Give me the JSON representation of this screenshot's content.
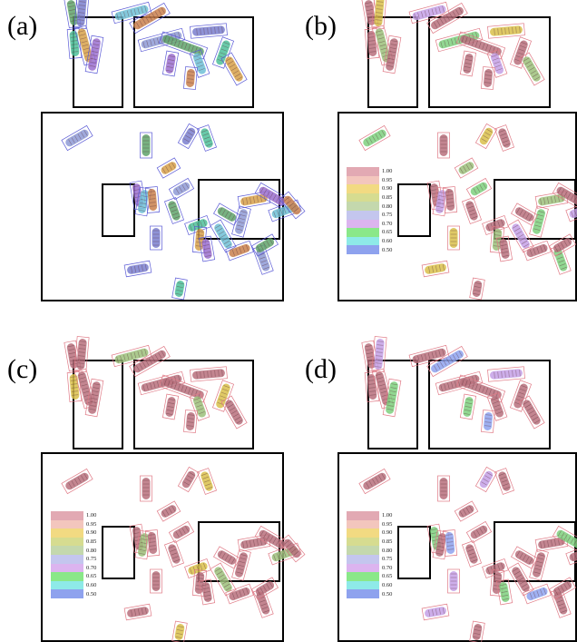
{
  "panels": [
    {
      "id": "a",
      "label": "(a)",
      "has_legend": false
    },
    {
      "id": "b",
      "label": "(b)",
      "has_legend": true
    },
    {
      "id": "c",
      "label": "(c)",
      "has_legend": true
    },
    {
      "id": "d",
      "label": "(d)",
      "has_legend": true
    }
  ],
  "legend": {
    "entries": [
      {
        "value": "1.00",
        "color": "#e2a9b3"
      },
      {
        "value": "0.95",
        "color": "#f3c6bd"
      },
      {
        "value": "0.90",
        "color": "#f2da82"
      },
      {
        "value": "0.85",
        "color": "#d6dc90"
      },
      {
        "value": "0.80",
        "color": "#c4d8ad"
      },
      {
        "value": "0.75",
        "color": "#c4c6ee"
      },
      {
        "value": "0.70",
        "color": "#dcb4ef"
      },
      {
        "value": "0.65",
        "color": "#8ae889"
      },
      {
        "value": "0.60",
        "color": "#8eeae8"
      },
      {
        "value": "0.50",
        "color": "#8ea2ee"
      }
    ]
  },
  "colors": {
    "chromosome_default": "#b8707c",
    "box_pink": "#e07a86",
    "box_blue": "#5b5bd6"
  }
}
